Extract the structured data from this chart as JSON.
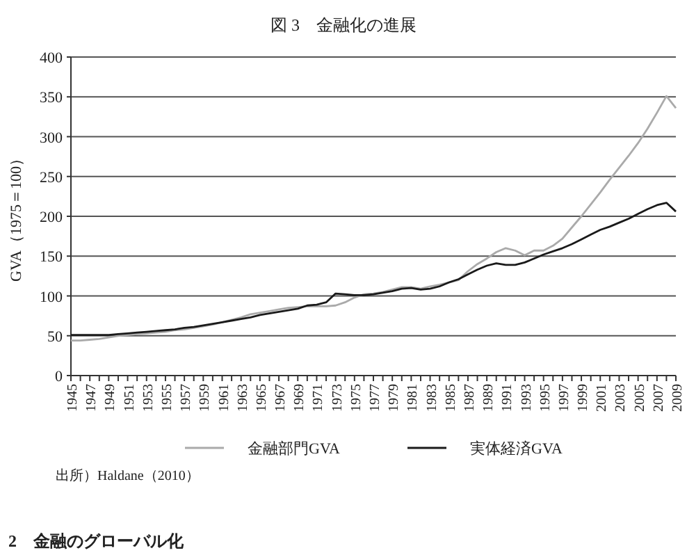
{
  "chart_data": {
    "type": "line",
    "title": "図 3　金融化の進展",
    "ylabel": "GVA（1975＝100）",
    "categories": [
      "1945",
      null,
      "1947",
      null,
      "1949",
      null,
      "1951",
      null,
      "1953",
      null,
      "1955",
      null,
      "1957",
      null,
      "1959",
      null,
      "1961",
      null,
      "1963",
      null,
      "1965",
      null,
      "1967",
      null,
      "1969",
      null,
      "1971",
      null,
      "1973",
      null,
      "1975",
      null,
      "1977",
      null,
      "1979",
      null,
      "1981",
      null,
      "1983",
      null,
      "1985",
      null,
      "1987",
      null,
      "1989",
      null,
      "1991",
      null,
      "1993",
      null,
      "1995",
      null,
      "1997",
      null,
      "1999",
      null,
      "2001",
      null,
      "2003",
      null,
      "2005",
      null,
      "2007",
      null,
      "2009"
    ],
    "series": [
      {
        "name": "金融部門GVA",
        "color": "#aaaaaa",
        "values": [
          44,
          44,
          45,
          46,
          48,
          50,
          51,
          52,
          53,
          54,
          55,
          57,
          58,
          60,
          62,
          64,
          67,
          70,
          73,
          77,
          79,
          81,
          83,
          85,
          86,
          87,
          87,
          87,
          88,
          92,
          98,
          102,
          103,
          105,
          108,
          111,
          111,
          109,
          112,
          114,
          117,
          120,
          131,
          140,
          147,
          155,
          160,
          157,
          151,
          157,
          157,
          163,
          172,
          186,
          200,
          215,
          230,
          246,
          261,
          276,
          292,
          310,
          330,
          351,
          336
        ]
      },
      {
        "name": "実体経済GVA",
        "color": "#1a1a1a",
        "values": [
          51,
          51,
          51,
          51,
          51,
          52,
          53,
          54,
          55,
          56,
          57,
          58,
          60,
          61,
          63,
          65,
          67,
          69,
          71,
          73,
          76,
          78,
          80,
          82,
          84,
          88,
          89,
          92,
          103,
          102,
          101,
          101,
          102,
          104,
          106,
          109,
          110,
          108,
          109,
          112,
          117,
          121,
          127,
          133,
          138,
          141,
          139,
          139,
          142,
          147,
          152,
          156,
          160,
          165,
          171,
          177,
          183,
          187,
          192,
          197,
          203,
          209,
          214,
          217,
          206
        ]
      }
    ],
    "ylim": [
      0,
      400
    ],
    "yticks": [
      0,
      50,
      100,
      150,
      200,
      250,
      300,
      350,
      400
    ],
    "grid": "y",
    "legend": "bottom",
    "annotations": [
      "出所）Haldane（2010）",
      "2　金融のグローバル化"
    ]
  }
}
